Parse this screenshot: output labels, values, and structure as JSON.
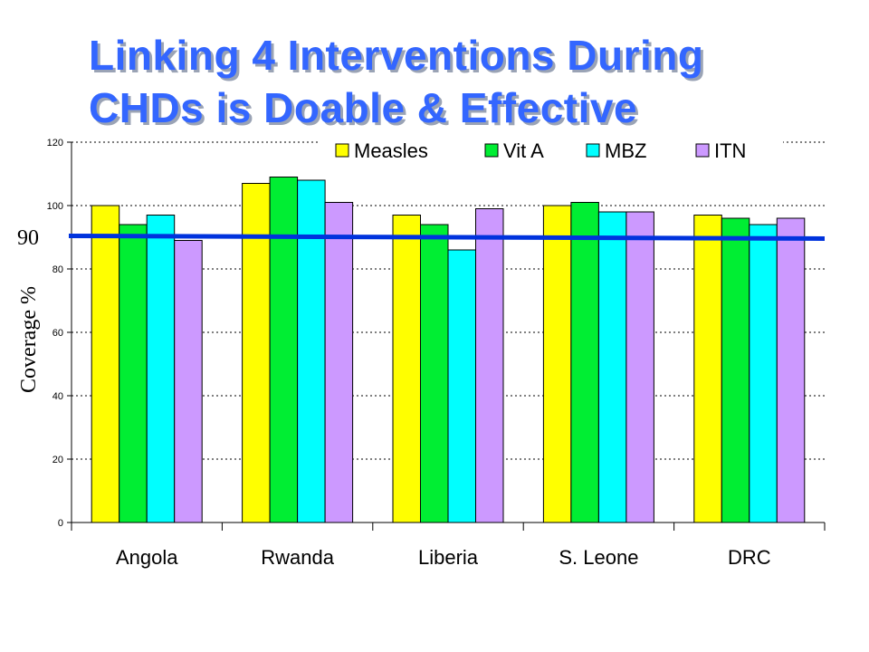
{
  "slide": {
    "title_line1": "Linking 4 Interventions During",
    "title_line2": "CHDs  is Doable & Effective"
  },
  "chart_data": {
    "type": "bar",
    "categories": [
      "Angola",
      "Rwanda",
      "Liberia",
      "S. Leone",
      "DRC"
    ],
    "series": [
      {
        "name": "Measles",
        "color": "#ffff00",
        "values": [
          100,
          107,
          97,
          100,
          97
        ]
      },
      {
        "name": "Vit A",
        "color": "#00ee33",
        "values": [
          94,
          109,
          94,
          101,
          96
        ]
      },
      {
        "name": "MBZ",
        "color": "#00ffff",
        "values": [
          97,
          108,
          86,
          98,
          94
        ]
      },
      {
        "name": "ITN",
        "color": "#cc99ff",
        "values": [
          89,
          101,
          99,
          98,
          96
        ]
      }
    ],
    "ylabel": "Coverage %",
    "ylim": [
      0,
      120
    ],
    "yticks": [
      0,
      20,
      40,
      60,
      80,
      100,
      120
    ],
    "grid": true,
    "legend_position": "top",
    "reference_line": {
      "value": 90,
      "label": "90",
      "color": "#0033dd"
    }
  }
}
